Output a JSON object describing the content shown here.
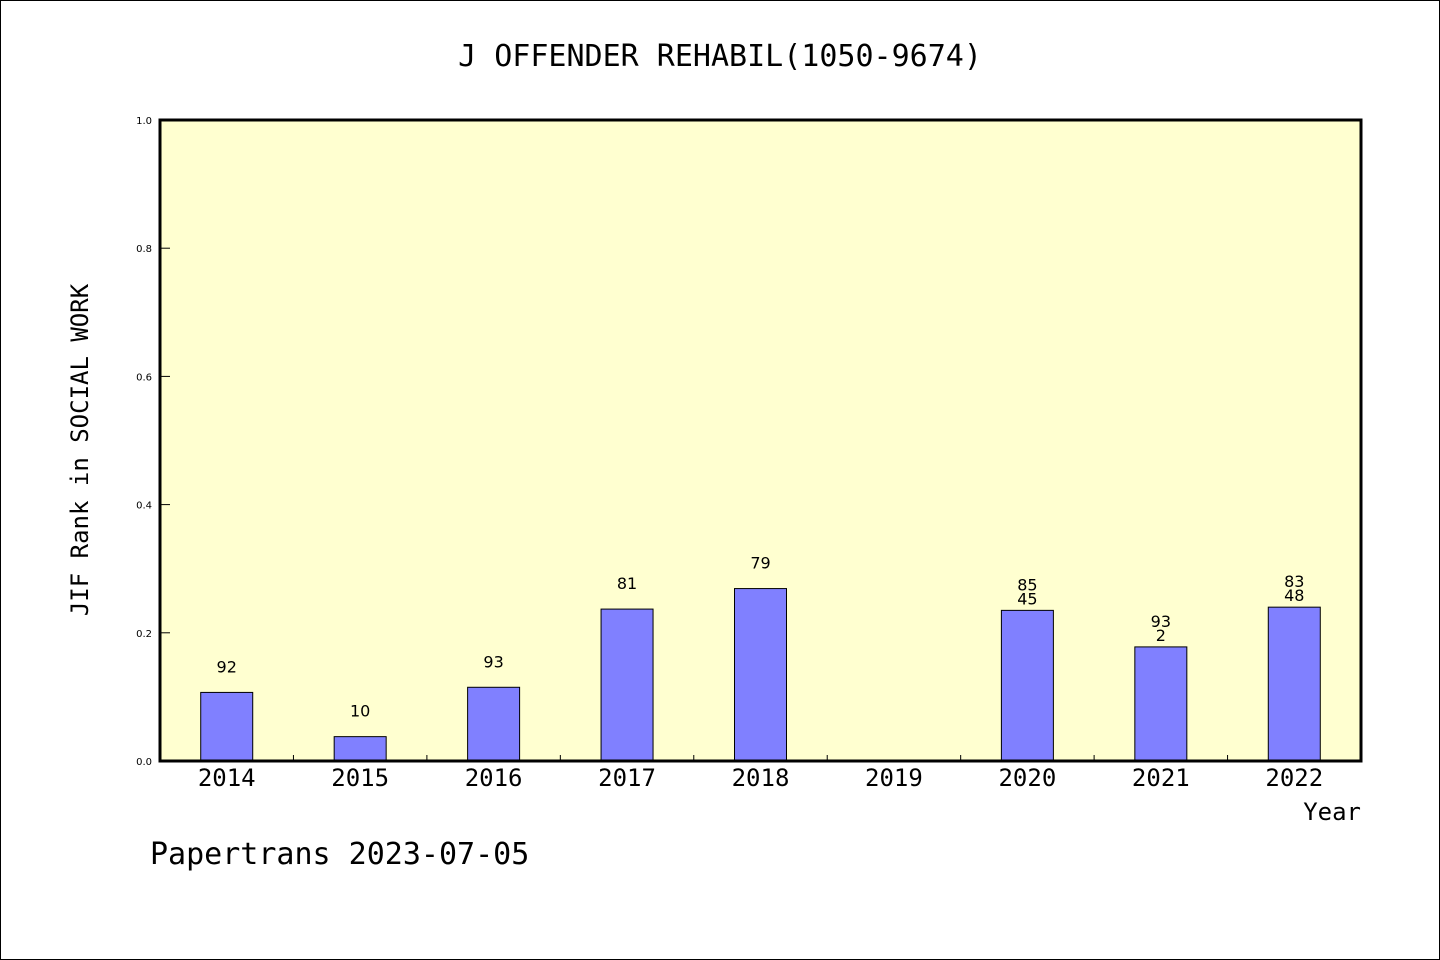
{
  "footer": "Papertrans 2023-07-05",
  "chart_data": {
    "type": "bar",
    "title": "J OFFENDER REHABIL(1050-9674)",
    "xlabel": "Year",
    "ylabel": "JIF Rank in SOCIAL WORK",
    "ylim": [
      0,
      1.0
    ],
    "yticks": [
      0.0,
      0.2,
      0.4,
      0.6,
      0.8,
      1.0
    ],
    "ytick_labels": [
      "0.0",
      "0.2",
      "0.4",
      "0.6",
      "0.8",
      "1.0"
    ],
    "categories": [
      "2014",
      "2015",
      "2016",
      "2017",
      "2018",
      "2019",
      "2020",
      "2021",
      "2022"
    ],
    "values": [
      0.107,
      0.038,
      0.115,
      0.237,
      0.269,
      null,
      0.235,
      0.178,
      0.24
    ],
    "labels": [
      [
        "92"
      ],
      [
        "10"
      ],
      [
        "93"
      ],
      [
        "81"
      ],
      [
        "79"
      ],
      [],
      [
        "85",
        "45"
      ],
      [
        "93",
        "2"
      ],
      [
        "83",
        "48"
      ]
    ],
    "grid": false,
    "plot_background": "#ffffd0",
    "bar_color": "#8080ff"
  }
}
